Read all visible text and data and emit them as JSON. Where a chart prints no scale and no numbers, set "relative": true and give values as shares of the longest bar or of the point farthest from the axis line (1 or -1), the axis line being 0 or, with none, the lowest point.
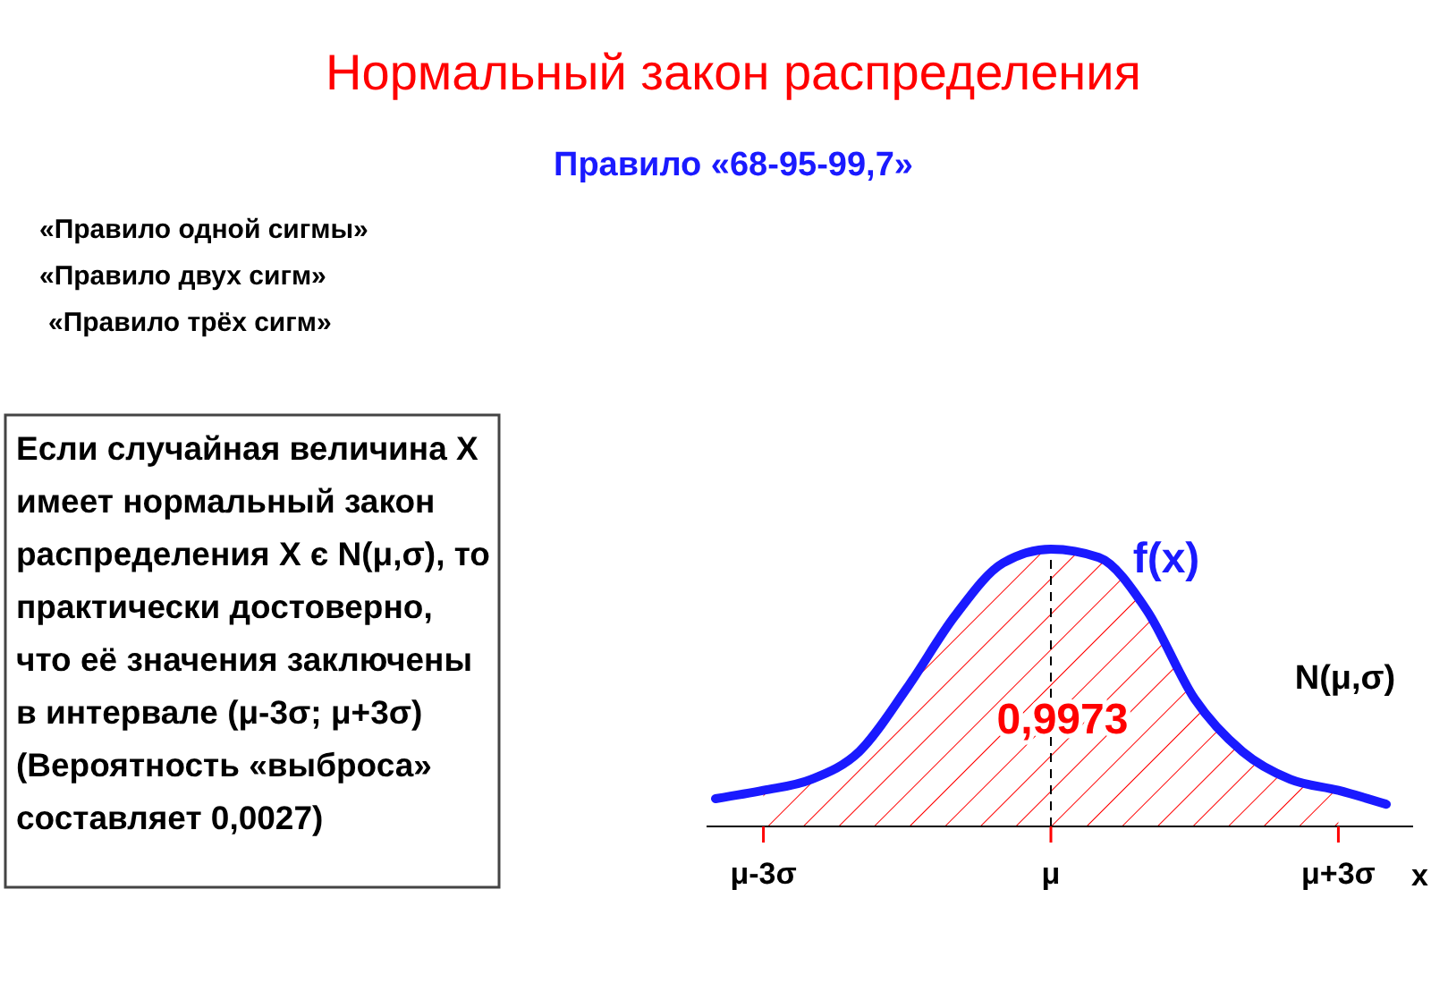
{
  "chart_data": {
    "type": "line",
    "title": "Нормальный закон распределения",
    "subtitle": "Правило «68-95-99,7»",
    "xlabel": "x",
    "relative": true,
    "categories": [
      null,
      "μ-3σ",
      null,
      null,
      null,
      null,
      null,
      "μ",
      null,
      null,
      null,
      null,
      null,
      "μ+3σ",
      null
    ],
    "series": [
      {
        "color": "#1a1aff",
        "values": [
          0.1,
          0.13,
          0.17,
          0.27,
          0.5,
          0.76,
          0.95,
          1,
          0.97,
          0.78,
          0.46,
          0.27,
          0.17,
          0.13,
          0.08
        ]
      },
      {
        "type": "area",
        "color": "#ff0000",
        "values": [
          null,
          0.13,
          0.17,
          0.27,
          0.5,
          0.76,
          0.95,
          1,
          0.97,
          0.78,
          0.46,
          0.27,
          0.17,
          0.13,
          null
        ]
      }
    ],
    "ref_lines": [
      {
        "axis": "x",
        "value": "μ",
        "color": "#000000",
        "line_style": "dashed"
      }
    ],
    "annotations": [
      "«Правило одной сигмы»",
      "«Правило двух сигм»",
      "«Правило трёх сигм»",
      "Если случайная величина Х\nимеет нормальный закон\nраспределения Х є N(μ,σ), то\nпрактически достоверно,\nчто её значения заключены\nв интервале (μ-3σ; μ+3σ)\n(Вероятность «выброса»\nсоставляет 0,0027)",
      "f(x)",
      "N(μ,σ)",
      "0,9973"
    ]
  }
}
